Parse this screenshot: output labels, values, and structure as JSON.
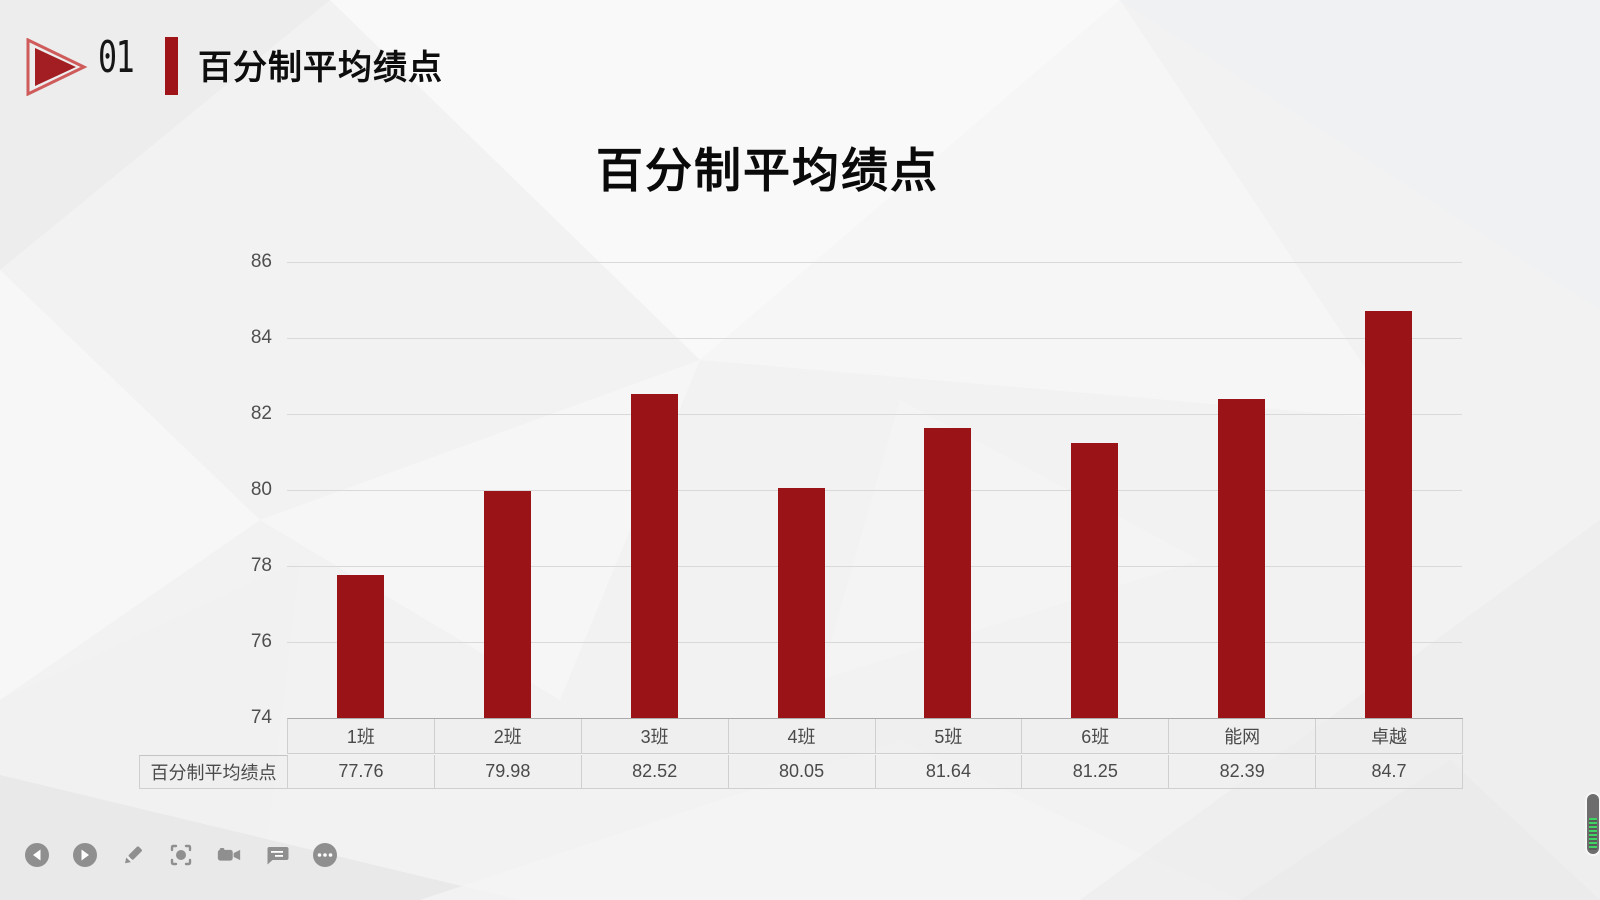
{
  "header": {
    "section_number": "01",
    "title": "百分制平均绩点"
  },
  "chart_data": {
    "type": "bar",
    "title": "百分制平均绩点",
    "categories": [
      "1班",
      "2班",
      "3班",
      "4班",
      "5班",
      "6班",
      "能网",
      "卓越"
    ],
    "series": [
      {
        "name": "百分制平均绩点",
        "values": [
          77.76,
          79.98,
          82.52,
          80.05,
          81.64,
          81.25,
          82.39,
          84.7
        ]
      }
    ],
    "xlabel": "",
    "ylabel": "",
    "ylim": [
      74,
      86
    ],
    "y_ticks": [
      74,
      76,
      78,
      80,
      82,
      84,
      86
    ],
    "grid": true,
    "legend_position": "none",
    "data_table_below_axis": true,
    "bar_color": "#9a1417",
    "gridline_color": "#d9d9d9",
    "axis_color": "#ababab"
  },
  "colors": {
    "accent_red": "#9f1418",
    "logo_outline_red": "#cf5b5b",
    "toolbar_icon_gray": "#8f8f8f",
    "battery_green": "#3fd463"
  },
  "toolbar": {
    "icons": [
      "previous-slide",
      "next-slide",
      "pen",
      "laser-pointer",
      "camera",
      "comments",
      "more-options"
    ]
  },
  "battery_indicator": {
    "fill_percent": 55
  }
}
